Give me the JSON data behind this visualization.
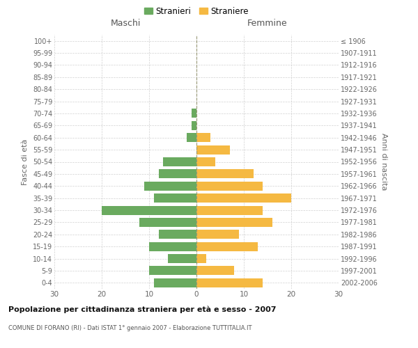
{
  "age_groups": [
    "0-4",
    "5-9",
    "10-14",
    "15-19",
    "20-24",
    "25-29",
    "30-34",
    "35-39",
    "40-44",
    "45-49",
    "50-54",
    "55-59",
    "60-64",
    "65-69",
    "70-74",
    "75-79",
    "80-84",
    "85-89",
    "90-94",
    "95-99",
    "100+"
  ],
  "birth_years": [
    "2002-2006",
    "1997-2001",
    "1992-1996",
    "1987-1991",
    "1982-1986",
    "1977-1981",
    "1972-1976",
    "1967-1971",
    "1962-1966",
    "1957-1961",
    "1952-1956",
    "1947-1951",
    "1942-1946",
    "1937-1941",
    "1932-1936",
    "1927-1931",
    "1922-1926",
    "1917-1921",
    "1912-1916",
    "1907-1911",
    "≤ 1906"
  ],
  "males": [
    9,
    10,
    6,
    10,
    8,
    12,
    20,
    9,
    11,
    8,
    7,
    0,
    2,
    1,
    1,
    0,
    0,
    0,
    0,
    0,
    0
  ],
  "females": [
    14,
    8,
    2,
    13,
    9,
    16,
    14,
    20,
    14,
    12,
    4,
    7,
    3,
    0,
    0,
    0,
    0,
    0,
    0,
    0,
    0
  ],
  "male_color": "#6aaa5f",
  "female_color": "#f5b942",
  "background_color": "#ffffff",
  "grid_color": "#cccccc",
  "title": "Popolazione per cittadinanza straniera per età e sesso - 2007",
  "subtitle": "COMUNE DI FORANO (RI) - Dati ISTAT 1° gennaio 2007 - Elaborazione TUTTITALIA.IT",
  "xlabel_left": "Maschi",
  "xlabel_right": "Femmine",
  "ylabel_left": "Fasce di età",
  "ylabel_right": "Anni di nascita",
  "legend_stranieri": "Stranieri",
  "legend_straniere": "Straniere",
  "xlim": 30,
  "bar_height": 0.75
}
